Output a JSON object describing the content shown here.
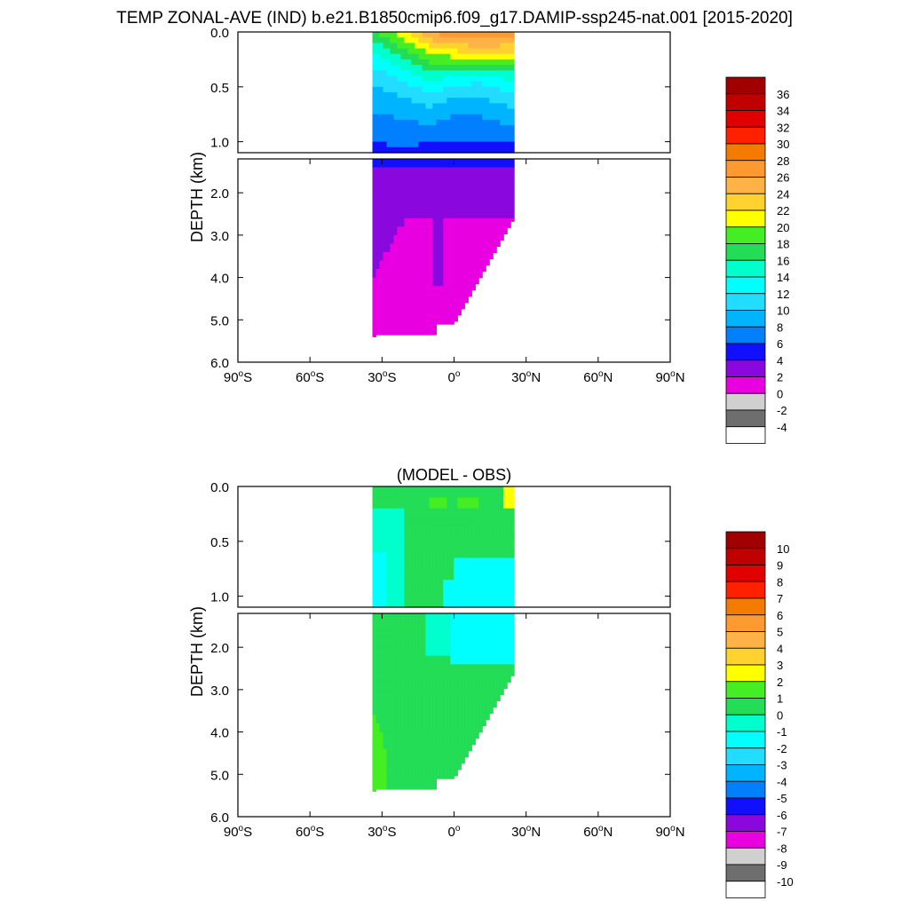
{
  "page": {
    "title": "TEMP ZONAL-AVE (IND) b.e21.B1850cmip6.f09_g17.DAMIP-ssp245-nat.001 [2015-2020]"
  },
  "chart_data": [
    {
      "type": "heatmap",
      "subtitle": "",
      "xlabel": "",
      "ylabel": "DEPTH (km)",
      "x_range": [
        -90,
        90
      ],
      "x_ticks": [
        {
          "value": -90,
          "deg": "90",
          "hemi": "S"
        },
        {
          "value": -60,
          "deg": "60",
          "hemi": "S"
        },
        {
          "value": -30,
          "deg": "30",
          "hemi": "S"
        },
        {
          "value": 0,
          "deg": "0",
          "hemi": ""
        },
        {
          "value": 30,
          "deg": "30",
          "hemi": "N"
        },
        {
          "value": 60,
          "deg": "60",
          "hemi": "N"
        },
        {
          "value": 90,
          "deg": "90",
          "hemi": "N"
        }
      ],
      "upper_panel": {
        "ylim": [
          0,
          1.1
        ],
        "y_ticks": [
          {
            "value": 0,
            "label": "0.0"
          },
          {
            "value": 0.5,
            "label": "0.5"
          },
          {
            "value": 1.0,
            "label": "1.0"
          }
        ]
      },
      "lower_panel": {
        "ylim": [
          1.2,
          6.0
        ],
        "y_ticks": [
          {
            "value": 2,
            "label": "2.0"
          },
          {
            "value": 3,
            "label": "3.0"
          },
          {
            "value": 4,
            "label": "4.0"
          },
          {
            "value": 5,
            "label": "5.0"
          },
          {
            "value": 6,
            "label": "6.0"
          }
        ]
      },
      "data_extent": {
        "lat_min": -34,
        "lat_max": 25
      },
      "colorbar": {
        "labels": [
          "36",
          "34",
          "32",
          "30",
          "28",
          "26",
          "24",
          "22",
          "20",
          "18",
          "16",
          "14",
          "12",
          "10",
          "8",
          "6",
          "4",
          "2",
          "0",
          "-2",
          "-4"
        ],
        "colors": [
          "#a00000",
          "#c00000",
          "#e00000",
          "#ff2000",
          "#f57b00",
          "#ff9a30",
          "#ffb347",
          "#ffd230",
          "#ffff00",
          "#44ee22",
          "#22dd55",
          "#00ffcc",
          "#00ffff",
          "#22ddff",
          "#00b4ff",
          "#0080ff",
          "#1010ff",
          "#8a08dd",
          "#e800e0",
          "#d0d0d0",
          "#6e6e6e",
          "#ffffff"
        ]
      },
      "fields": {
        "upper": {
          "samples": [
            {
              "lat": -32,
              "temps": [
                18,
                14,
                11,
                9,
                7,
                5.5
              ]
            },
            {
              "lat": -20,
              "temps": [
                22,
                17,
                13,
                10,
                7.5,
                5.5
              ]
            },
            {
              "lat": -10,
              "temps": [
                26,
                20,
                15,
                11,
                8,
                5
              ]
            },
            {
              "lat": 0,
              "temps": [
                28,
                21,
                14,
                10,
                7,
                5
              ]
            },
            {
              "lat": 10,
              "temps": [
                28,
                22,
                13,
                10,
                7,
                5
              ]
            },
            {
              "lat": 24,
              "temps": [
                27,
                22,
                15,
                11,
                8,
                5
              ]
            }
          ],
          "depths_km": [
            0,
            0.2,
            0.4,
            0.6,
            0.85,
            1.1
          ]
        },
        "lower": {
          "approx": "4-6 near 1.2 km, 2-4 from 1.3 to ~2.6 km, 0-2 below"
        }
      }
    },
    {
      "type": "heatmap",
      "subtitle": "(MODEL - OBS)",
      "xlabel": "",
      "ylabel": "DEPTH (km)",
      "x_range": [
        -90,
        90
      ],
      "x_ticks": [
        {
          "value": -90,
          "deg": "90",
          "hemi": "S"
        },
        {
          "value": -60,
          "deg": "60",
          "hemi": "S"
        },
        {
          "value": -30,
          "deg": "30",
          "hemi": "S"
        },
        {
          "value": 0,
          "deg": "0",
          "hemi": ""
        },
        {
          "value": 30,
          "deg": "30",
          "hemi": "N"
        },
        {
          "value": 60,
          "deg": "60",
          "hemi": "N"
        },
        {
          "value": 90,
          "deg": "90",
          "hemi": "N"
        }
      ],
      "upper_panel": {
        "ylim": [
          0,
          1.1
        ],
        "y_ticks": [
          {
            "value": 0,
            "label": "0.0"
          },
          {
            "value": 0.5,
            "label": "0.5"
          },
          {
            "value": 1.0,
            "label": "1.0"
          }
        ]
      },
      "lower_panel": {
        "ylim": [
          1.2,
          6.0
        ],
        "y_ticks": [
          {
            "value": 2,
            "label": "2.0"
          },
          {
            "value": 3,
            "label": "3.0"
          },
          {
            "value": 4,
            "label": "4.0"
          },
          {
            "value": 5,
            "label": "5.0"
          },
          {
            "value": 6,
            "label": "6.0"
          }
        ]
      },
      "data_extent": {
        "lat_min": -34,
        "lat_max": 25
      },
      "colorbar": {
        "labels": [
          "10",
          "9",
          "8",
          "7",
          "6",
          "5",
          "4",
          "3",
          "2",
          "1",
          "0",
          "-1",
          "-2",
          "-3",
          "-4",
          "-5",
          "-6",
          "-7",
          "-8",
          "-9",
          "-10"
        ],
        "colors": [
          "#a00000",
          "#c00000",
          "#e00000",
          "#ff2000",
          "#f57b00",
          "#ff9a30",
          "#ffb347",
          "#ffd230",
          "#ffff00",
          "#44ee22",
          "#22dd55",
          "#00ffcc",
          "#00ffff",
          "#22ddff",
          "#00b4ff",
          "#0080ff",
          "#1010ff",
          "#8a08dd",
          "#e800e0",
          "#d0d0d0",
          "#6e6e6e",
          "#ffffff"
        ]
      },
      "fields": {
        "upper": {
          "approx": "0 to 1 dominant, 1-2 patches near 0.1-0.2 km, 2-3 at ~24N surface, -1 to -2 west of 20S and below 0.6 km"
        },
        "lower": {
          "approx": "-1 to -2 from 1.2 to ~2.2 km north of 10S, 0 to 1 below, 1 to 2 in deep southwest"
        }
      }
    }
  ]
}
